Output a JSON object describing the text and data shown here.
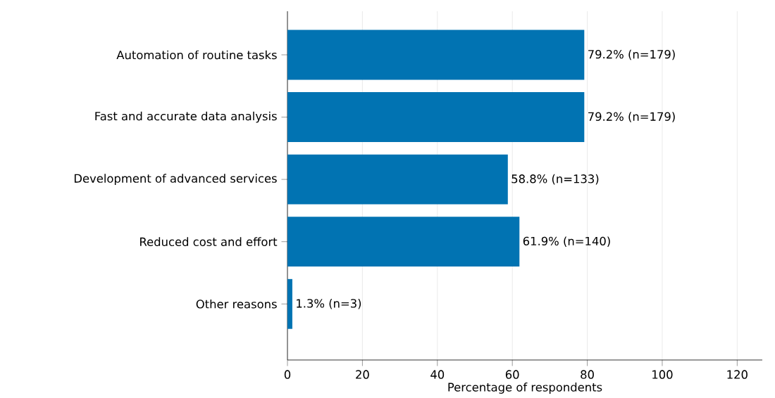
{
  "chart_data": {
    "type": "bar",
    "orientation": "horizontal",
    "xlabel": "Percentage of respondents",
    "categories": [
      "Automation of routine tasks",
      "Fast and accurate data analysis",
      "Development of advanced services",
      "Reduced cost and effort",
      "Other reasons"
    ],
    "values": [
      79.2,
      79.2,
      58.8,
      61.9,
      1.3
    ],
    "value_labels": [
      "79.2% (n=179)",
      "79.2% (n=179)",
      "58.8% (n=133)",
      "61.9% (n=140)",
      "1.3% (n=3)"
    ],
    "color": "#0173b2",
    "xlim": [
      0,
      126.7
    ],
    "xticks": [
      0,
      20,
      40,
      60,
      80,
      100,
      120
    ],
    "grid": "x"
  }
}
